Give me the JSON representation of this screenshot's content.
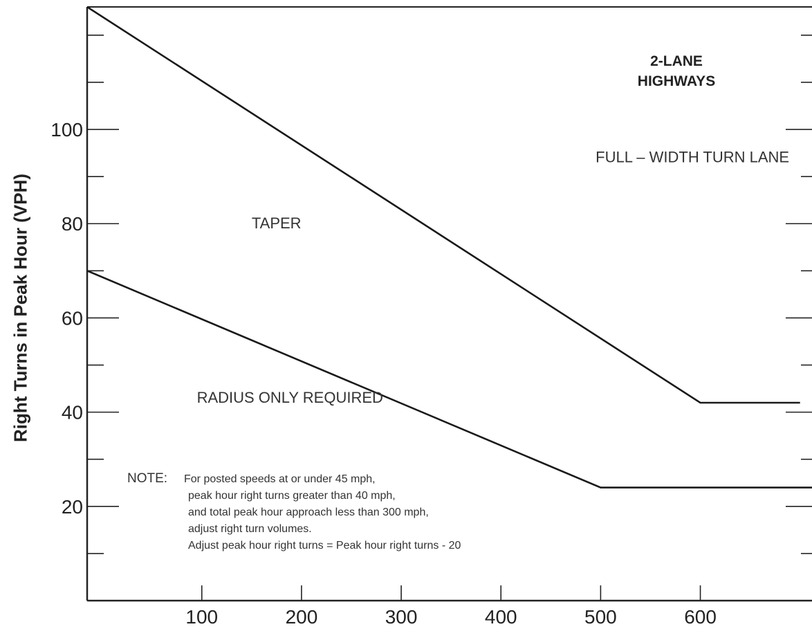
{
  "chart_data": {
    "type": "line",
    "ylabel": "Right Turns in Peak Hour (VPH)",
    "xlabel": "",
    "x_ticks": [
      "100",
      "200",
      "300",
      "400",
      "500",
      "600"
    ],
    "y_ticks": [
      "20",
      "40",
      "60",
      "80",
      "100"
    ],
    "xlim": [
      -15,
      712
    ],
    "ylim": [
      0,
      126
    ],
    "series": [
      {
        "points": [
          [
            -15,
            126
          ],
          [
            600,
            42
          ],
          [
            700,
            42
          ]
        ]
      },
      {
        "points": [
          [
            -15,
            70
          ],
          [
            500,
            24
          ],
          [
            712,
            24
          ]
        ]
      }
    ],
    "region_labels": [
      {
        "text": "TAPER",
        "x": 150,
        "y": 79
      },
      {
        "text": "FULL – WIDTH TURN LANE",
        "x": 495,
        "y": 93
      },
      {
        "text": "RADIUS ONLY REQUIRED",
        "x": 95,
        "y": 42
      }
    ],
    "title_lines": [
      "2-LANE",
      "HIGHWAYS"
    ],
    "note": {
      "label": "NOTE:",
      "lines": [
        "For posted speeds at or under 45 mph,",
        "peak hour right turns greater than 40 mph,",
        "and total peak hour approach less than 300 mph,",
        "adjust right turn volumes.",
        "Adjust peak hour right turns = Peak hour right turns - 20"
      ]
    }
  }
}
